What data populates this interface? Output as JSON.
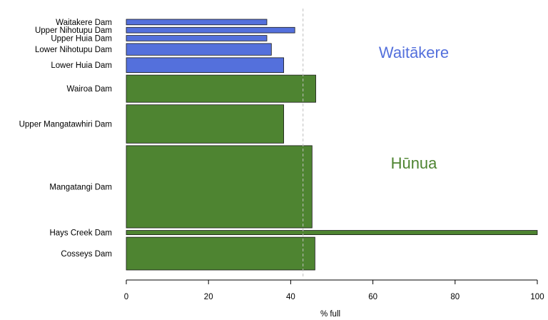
{
  "chart_data": {
    "type": "bar",
    "orientation": "horizontal",
    "xlabel": "% full",
    "xlim": [
      0,
      100
    ],
    "x_ticks": [
      0,
      20,
      40,
      60,
      80,
      100
    ],
    "reference_line": {
      "value": 43,
      "style": "dashed",
      "color": "#c0c0c0"
    },
    "note": "bar thickness proportional to dam capacity",
    "groups": [
      {
        "name": "Waitākere",
        "color": "#5470dc"
      },
      {
        "name": "Hūnua",
        "color": "#4e8431"
      }
    ],
    "categories": [
      "Waitakere Dam",
      "Upper Nihotupu Dam",
      "Upper Huia Dam",
      "Lower Nihotupu Dam",
      "Lower Huia Dam",
      "Wairoa Dam",
      "Upper Mangatawhiri Dam",
      "Mangatangi Dam",
      "Hays Creek Dam",
      "Cosseys Dam"
    ],
    "values": [
      34.2,
      41.0,
      34.2,
      35.3,
      38.3,
      46.1,
      38.3,
      45.2,
      100.0,
      45.9
    ],
    "group_of": [
      0,
      0,
      0,
      0,
      0,
      1,
      1,
      1,
      1,
      1
    ],
    "capacity_weight": [
      0.45,
      0.45,
      0.45,
      0.95,
      1.2,
      2.2,
      3.1,
      6.65,
      0.35,
      2.65
    ]
  }
}
